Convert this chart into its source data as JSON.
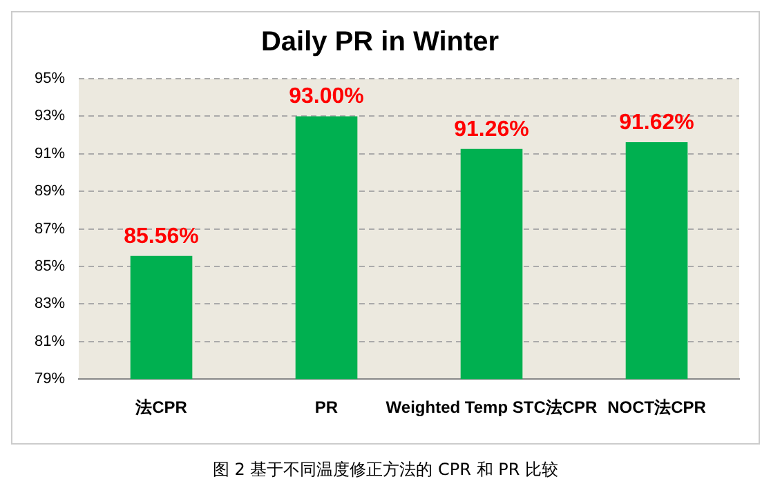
{
  "chart_data": {
    "type": "bar",
    "title": "Daily PR in Winter",
    "categories": [
      "法CPR",
      "PR",
      "Weighted Temp STC法CPR",
      "NOCT法CPR"
    ],
    "values": [
      85.56,
      93.0,
      91.26,
      91.62
    ],
    "color": "#00b050",
    "value_labels": [
      "85.56%",
      "93.00%",
      "91.26%",
      "91.62%"
    ],
    "ylim": [
      79,
      95
    ],
    "yticks": [
      {
        "value": 79,
        "label": "79%"
      },
      {
        "value": 81,
        "label": "81%"
      },
      {
        "value": 83,
        "label": "83%"
      },
      {
        "value": 85,
        "label": "85%"
      },
      {
        "value": 87,
        "label": "87%"
      },
      {
        "value": 89,
        "label": "89%"
      },
      {
        "value": 91,
        "label": "91%"
      },
      {
        "value": 93,
        "label": "93%"
      },
      {
        "value": 95,
        "label": "95%"
      }
    ],
    "grid": "y",
    "annotations": [
      "图 2 基于不同温度修正方法的 CPR 和 PR 比较"
    ]
  }
}
